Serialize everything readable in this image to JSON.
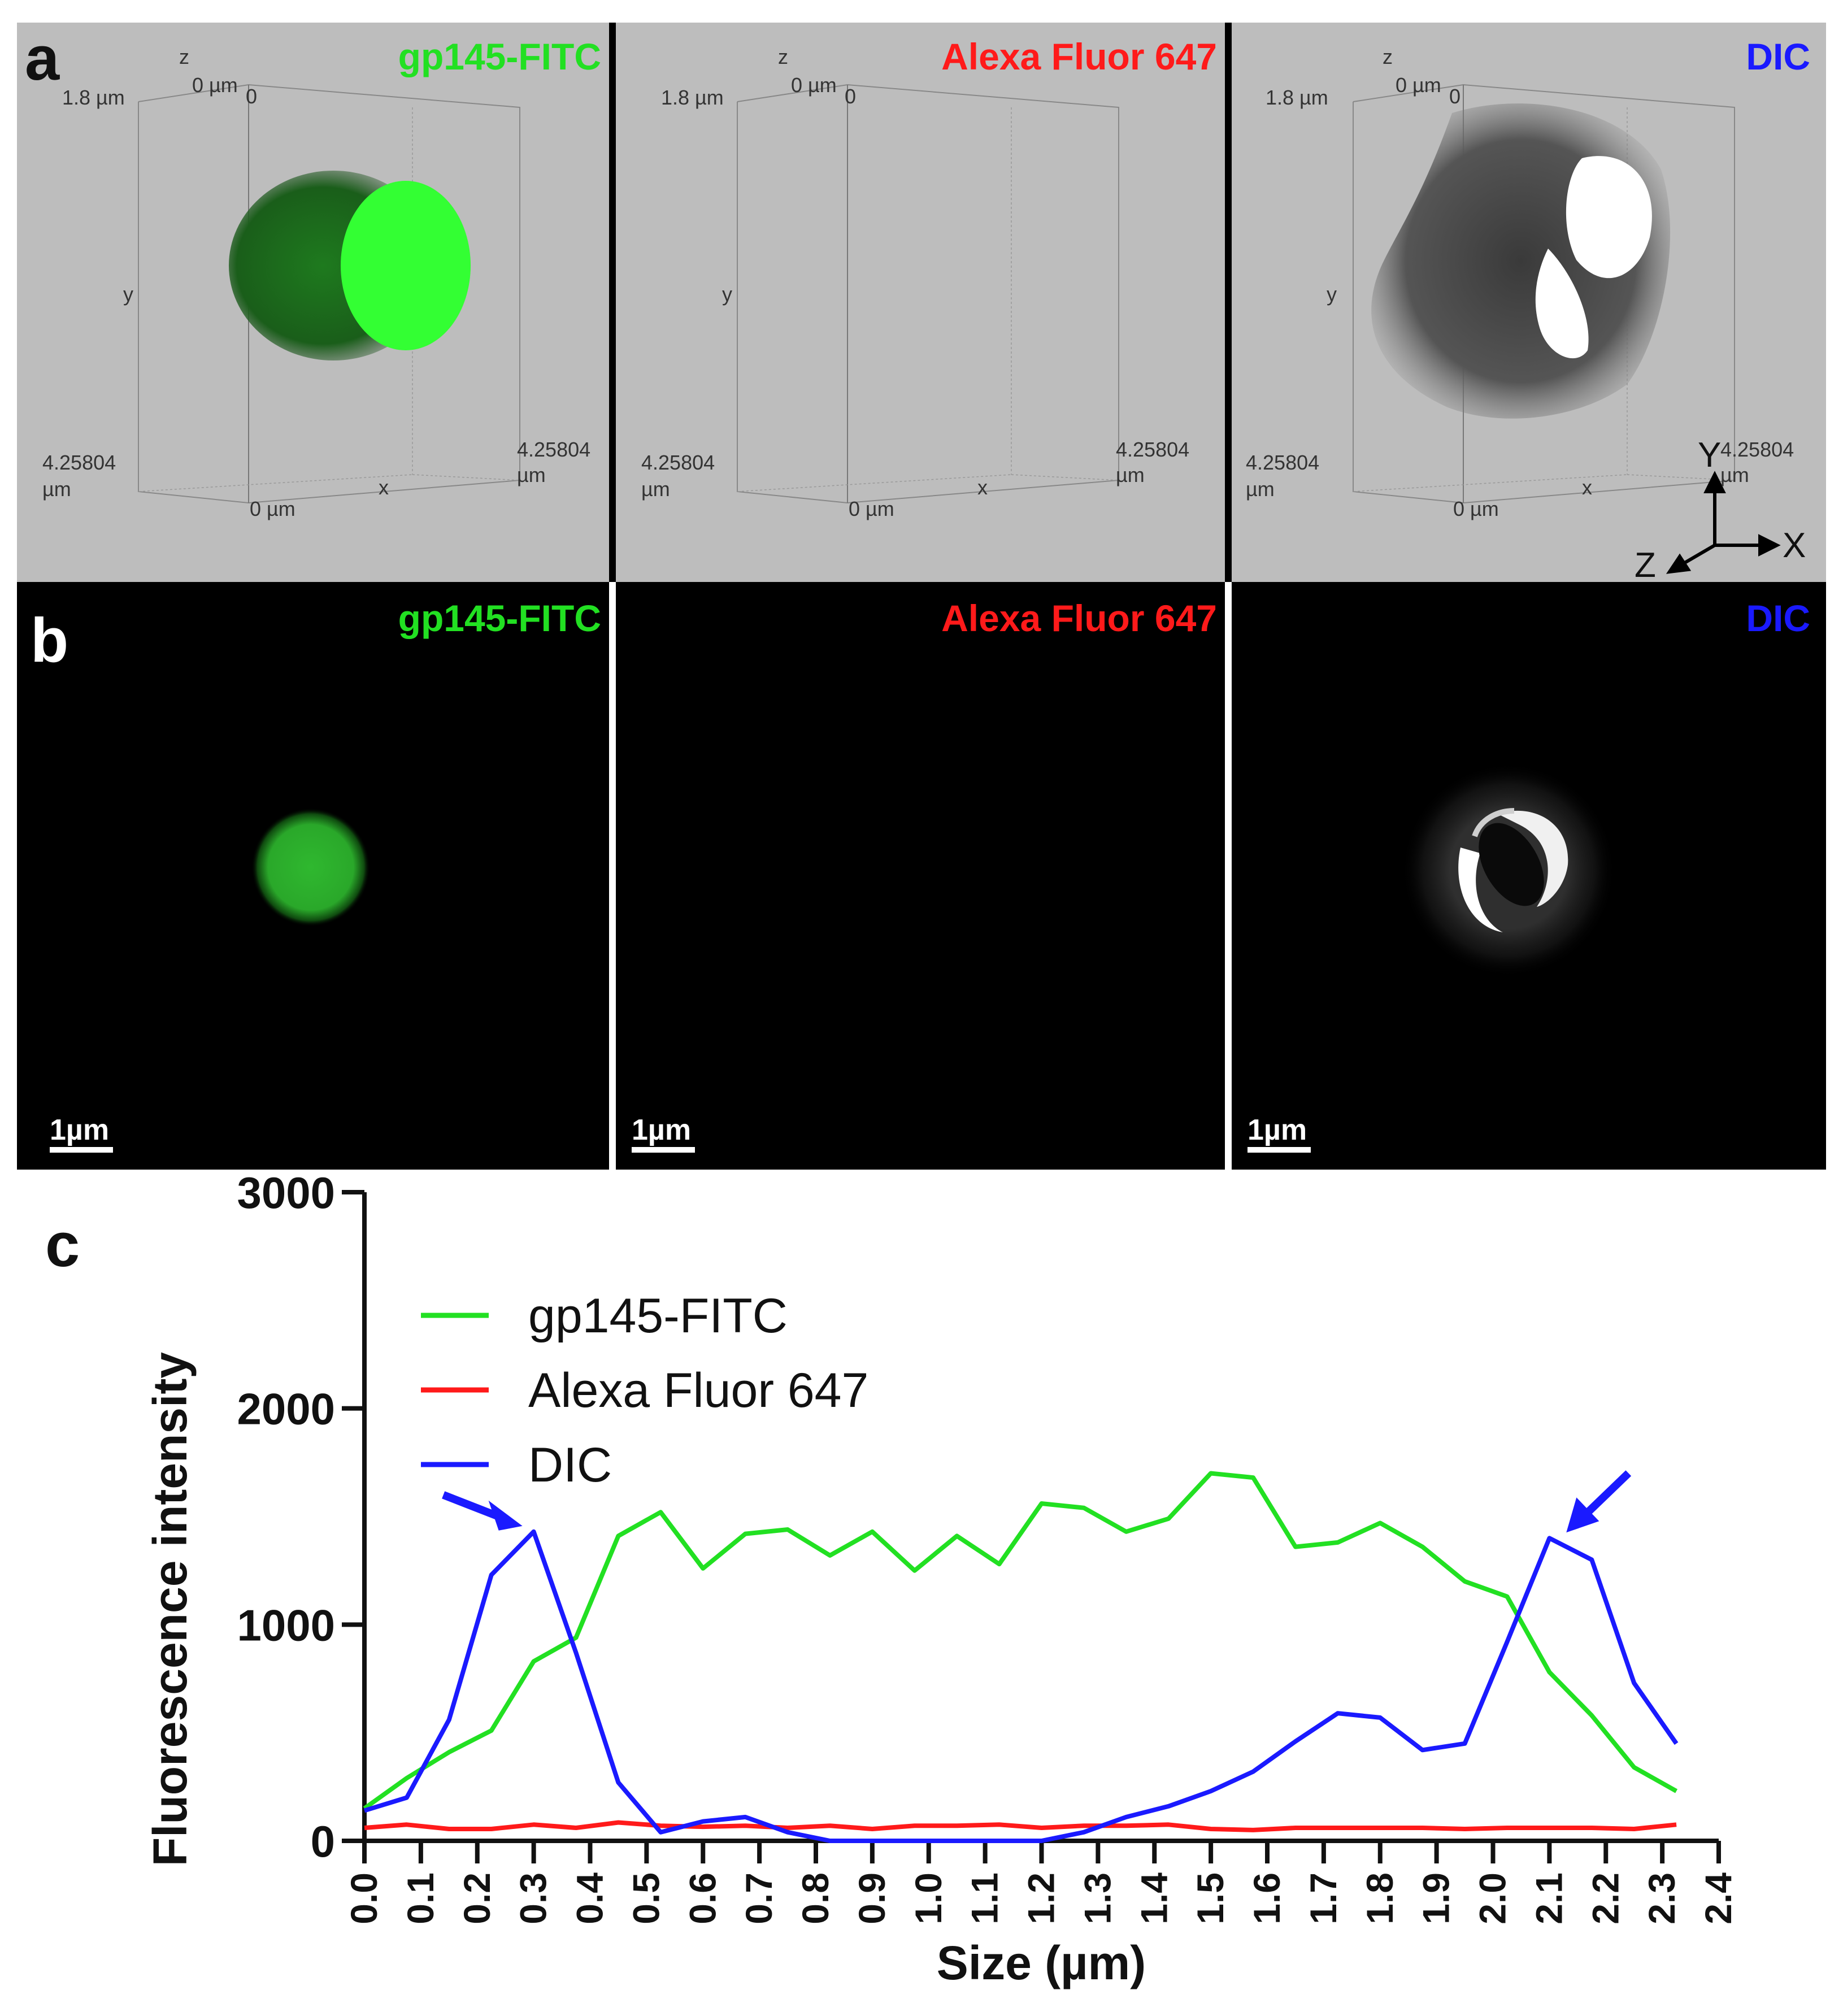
{
  "panel_labels": {
    "a": "a",
    "b": "b",
    "c": "c"
  },
  "channels": {
    "fitc": {
      "label": "gp145-FITC",
      "color": "#22e022"
    },
    "alexa": {
      "label": "Alexa Fluor 647",
      "color": "#ff1a1a"
    },
    "dic": {
      "label": "DIC",
      "color": "#1a1aff"
    }
  },
  "box_labels": {
    "z": "z",
    "y": "y",
    "x": "x",
    "zero_um": "0 µm",
    "zero": "0",
    "height": "1.8 µm",
    "dim_val": "4.25804",
    "um": "µm"
  },
  "orientation_axes": {
    "y": "Y",
    "x": "X",
    "z": "Z"
  },
  "scale_bar": "1µm",
  "chart_data": {
    "type": "line",
    "xlabel": "Size (µm)",
    "ylabel": "Fluorescence intensity",
    "xlim": [
      0,
      2.4
    ],
    "ylim": [
      0,
      3000
    ],
    "x_ticks": [
      "0.0",
      "0.1",
      "0.2",
      "0.3",
      "0.4",
      "0.5",
      "0.6",
      "0.7",
      "0.8",
      "0.9",
      "1.0",
      "1.1",
      "1.2",
      "1.3",
      "1.4",
      "1.5",
      "1.6",
      "1.7",
      "1.8",
      "1.9",
      "2.0",
      "2.1",
      "2.2",
      "2.3",
      "2.4"
    ],
    "y_ticks": [
      "0",
      "1000",
      "2000",
      "3000"
    ],
    "legend_position": "upper-left",
    "x": [
      0.0,
      0.075,
      0.15,
      0.225,
      0.3,
      0.375,
      0.45,
      0.525,
      0.6,
      0.675,
      0.75,
      0.825,
      0.9,
      0.975,
      1.05,
      1.125,
      1.2,
      1.275,
      1.35,
      1.425,
      1.5,
      1.575,
      1.65,
      1.725,
      1.8,
      1.875,
      1.95,
      2.025,
      2.1,
      2.175,
      2.25,
      2.325
    ],
    "series": [
      {
        "name": "gp145-FITC",
        "color": "#22e022",
        "values": [
          150,
          290,
          410,
          510,
          830,
          940,
          1410,
          1520,
          1260,
          1420,
          1440,
          1320,
          1430,
          1250,
          1410,
          1280,
          1560,
          1540,
          1430,
          1490,
          1700,
          1680,
          1360,
          1380,
          1470,
          1360,
          1200,
          1130,
          780,
          580,
          340,
          230
        ]
      },
      {
        "name": "Alexa Fluor 647",
        "color": "#ff1a1a",
        "values": [
          60,
          75,
          55,
          55,
          75,
          60,
          85,
          70,
          65,
          70,
          60,
          70,
          55,
          70,
          70,
          75,
          60,
          70,
          70,
          75,
          55,
          50,
          60,
          60,
          60,
          60,
          55,
          60,
          60,
          60,
          55,
          75
        ]
      },
      {
        "name": "DIC",
        "color": "#1a1aff",
        "values": [
          140,
          200,
          560,
          1230,
          1430,
          870,
          270,
          40,
          90,
          110,
          40,
          0,
          0,
          0,
          0,
          0,
          0,
          40,
          110,
          160,
          230,
          320,
          460,
          590,
          570,
          420,
          450,
          920,
          1400,
          1300,
          730,
          450
        ]
      }
    ],
    "annotations": [
      {
        "type": "arrow",
        "x": 0.27,
        "y": 1430,
        "color": "#1a1aff"
      },
      {
        "type": "arrow",
        "x": 2.16,
        "y": 1400,
        "color": "#1a1aff"
      }
    ]
  }
}
